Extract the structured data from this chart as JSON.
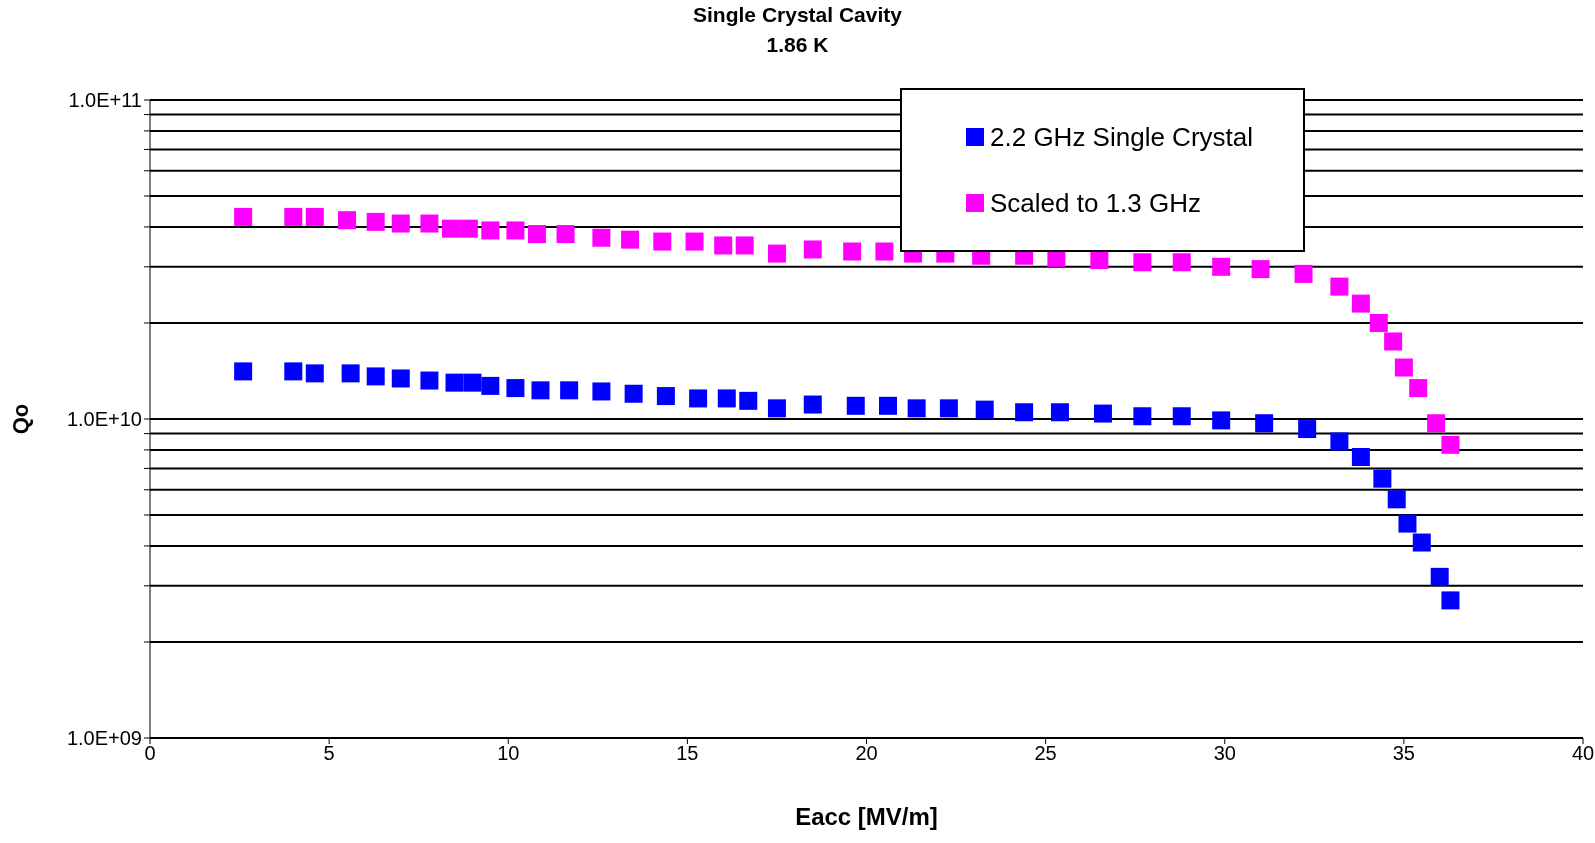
{
  "chart_data": {
    "type": "scatter",
    "title": "Single Crystal Cavity",
    "subtitle": "1.86 K",
    "xlabel": "Eacc [MV/m]",
    "ylabel": "Qo",
    "xlim": [
      0,
      40
    ],
    "xticks": [
      0,
      5,
      10,
      15,
      20,
      25,
      30,
      35,
      40
    ],
    "ylim": [
      1000000000.0,
      100000000000.0
    ],
    "log": "y",
    "yticks": [
      {
        "value": 1000000000.0,
        "label": "1.0E+09"
      },
      {
        "value": 2000000000.0,
        "label": null
      },
      {
        "value": 3000000000.0,
        "label": null
      },
      {
        "value": 4000000000.0,
        "label": null
      },
      {
        "value": 5000000000.0,
        "label": null
      },
      {
        "value": 6000000000.0,
        "label": null
      },
      {
        "value": 7000000000.0,
        "label": null
      },
      {
        "value": 8000000000.0,
        "label": null
      },
      {
        "value": 9000000000.0,
        "label": null
      },
      {
        "value": 10000000000.0,
        "label": "1.0E+10"
      },
      {
        "value": 20000000000.0,
        "label": null
      },
      {
        "value": 30000000000.0,
        "label": null
      },
      {
        "value": 40000000000.0,
        "label": null
      },
      {
        "value": 50000000000.0,
        "label": null
      },
      {
        "value": 60000000000.0,
        "label": null
      },
      {
        "value": 70000000000.0,
        "label": null
      },
      {
        "value": 80000000000.0,
        "label": null
      },
      {
        "value": 90000000000.0,
        "label": null
      },
      {
        "value": 100000000000.0,
        "label": "1.0E+11"
      }
    ],
    "grid": "y",
    "legend": "top right",
    "marker": "square",
    "series": [
      {
        "name": "2.2 GHz Single Crystal",
        "color": "#0000ff",
        "x": [
          2.6,
          4.0,
          4.6,
          5.6,
          6.3,
          7.0,
          7.8,
          8.5,
          9.0,
          9.5,
          10.2,
          10.9,
          11.7,
          12.6,
          13.5,
          14.4,
          15.3,
          16.1,
          16.7,
          17.5,
          18.5,
          19.7,
          20.6,
          21.4,
          22.3,
          23.3,
          24.4,
          25.4,
          26.6,
          27.7,
          28.8,
          29.9,
          31.1,
          32.3,
          33.2,
          33.8,
          34.4,
          34.8,
          35.1,
          35.5,
          36.0,
          36.3
        ],
        "values": [
          14100000000.0,
          14100000000.0,
          13900000000.0,
          13900000000.0,
          13600000000.0,
          13400000000.0,
          13200000000.0,
          13000000000.0,
          13000000000.0,
          12700000000.0,
          12500000000.0,
          12300000000.0,
          12300000000.0,
          12200000000.0,
          12000000000.0,
          11800000000.0,
          11600000000.0,
          11600000000.0,
          11400000000.0,
          10800000000.0,
          11100000000.0,
          11000000000.0,
          11000000000.0,
          10800000000.0,
          10800000000.0,
          10700000000.0,
          10500000000.0,
          10500000000.0,
          10400000000.0,
          10200000000.0,
          10200000000.0,
          9900000000.0,
          9700000000.0,
          9300000000.0,
          8500000000.0,
          7600000000.0,
          6500000000.0,
          5600000000.0,
          4700000000.0,
          4100000000.0,
          3200000000.0,
          2700000000.0
        ]
      },
      {
        "name": "Scaled to 1.3 GHz",
        "color": "#ff00ff",
        "x": [
          2.6,
          4.0,
          4.6,
          5.5,
          6.3,
          7.0,
          7.8,
          8.4,
          8.9,
          9.5,
          10.2,
          10.8,
          11.6,
          12.6,
          13.4,
          14.3,
          15.2,
          16.0,
          16.6,
          17.5,
          18.5,
          19.6,
          20.5,
          21.3,
          22.2,
          23.2,
          24.4,
          25.3,
          26.5,
          27.7,
          28.8,
          29.9,
          31.0,
          32.2,
          33.2,
          33.8,
          34.3,
          34.7,
          35.0,
          35.4,
          35.9,
          36.3
        ],
        "values": [
          43000000000.0,
          43000000000.0,
          43000000000.0,
          42000000000.0,
          41500000000.0,
          41000000000.0,
          41000000000.0,
          39500000000.0,
          39500000000.0,
          39000000000.0,
          39000000000.0,
          38000000000.0,
          38000000000.0,
          37000000000.0,
          36500000000.0,
          36000000000.0,
          36000000000.0,
          35000000000.0,
          35000000000.0,
          33000000000.0,
          34000000000.0,
          33500000000.0,
          33500000000.0,
          33000000000.0,
          33000000000.0,
          32500000000.0,
          32500000000.0,
          32000000000.0,
          31500000000.0,
          31000000000.0,
          31000000000.0,
          30000000000.0,
          29500000000.0,
          28500000000.0,
          26000000000.0,
          23000000000.0,
          20000000000.0,
          17500000000.0,
          14500000000.0,
          12500000000.0,
          9700000000.0,
          8300000000.0
        ]
      }
    ]
  }
}
